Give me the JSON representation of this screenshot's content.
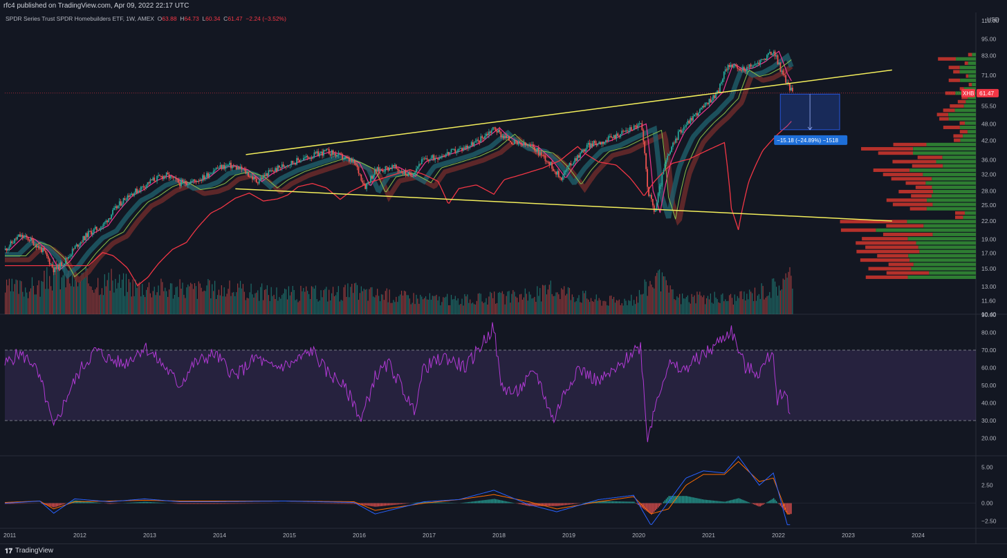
{
  "header": {
    "publisher": "rfc4 published on TradingView.com, Apr 09, 2022 22:17 UTC",
    "legend_name": "SPDR Series Trust SPDR Homebuilders ETF, 1W, AMEX",
    "ohlc": {
      "O": "63.88",
      "H": "64.73",
      "L": "60.34",
      "C": "61.47",
      "change": "−2.24 (−3.52%)"
    }
  },
  "footer": {
    "brand": "TradingView"
  },
  "colors": {
    "background": "#131722",
    "up": "#26a69a",
    "down": "#ef5350",
    "rsi": "#b23ad6",
    "trendline": "#f5f05c",
    "ma_red": "#f23645",
    "macd": "#2962ff",
    "signal": "#ff6d00",
    "profile_up": "#2e7d32",
    "profile_down": "#b5312b"
  },
  "chart_data": [
    {
      "type": "line",
      "title": "SPDR Series Trust SPDR Homebuilders ETF, 1W, AMEX",
      "ticker": "XHB",
      "last_price_label": "61.47",
      "currency": "USD",
      "y_scale": "log",
      "ylim": [
        10.4,
        110
      ],
      "y_ticks": [
        "110.00",
        "95.00",
        "83.00",
        "71.00",
        "62.00",
        "55.50",
        "48.00",
        "42.00",
        "36.00",
        "32.00",
        "28.00",
        "25.00",
        "22.00",
        "19.00",
        "17.00",
        "15.00",
        "13.00",
        "11.60",
        "10.40"
      ],
      "x_ticks": [
        "2011",
        "2012",
        "2013",
        "2014",
        "2015",
        "2016",
        "2017",
        "2018",
        "2019",
        "2020",
        "2021",
        "2022",
        "2023",
        "2024"
      ],
      "xlim": [
        2011.0,
        2024.9
      ],
      "price_series": {
        "name": "XHB",
        "x": [
          2011.0,
          2011.2,
          2011.35,
          2011.55,
          2011.7,
          2011.85,
          2012.0,
          2012.2,
          2012.4,
          2012.55,
          2012.75,
          2012.9,
          2013.1,
          2013.3,
          2013.5,
          2013.7,
          2013.85,
          2014.0,
          2014.2,
          2014.4,
          2014.6,
          2014.75,
          2015.0,
          2015.3,
          2015.6,
          2015.8,
          2016.0,
          2016.15,
          2016.3,
          2016.55,
          2016.8,
          2016.95,
          2017.2,
          2017.5,
          2017.75,
          2018.0,
          2018.1,
          2018.3,
          2018.55,
          2018.75,
          2018.95,
          2019.1,
          2019.35,
          2019.6,
          2019.85,
          2020.1,
          2020.2,
          2020.3,
          2020.45,
          2020.65,
          2020.85,
          2021.0,
          2021.2,
          2021.35,
          2021.5,
          2021.65,
          2021.8,
          2022.0,
          2022.12,
          2022.27
        ],
        "y": [
          17.5,
          19.5,
          19.0,
          17.2,
          14.8,
          15.9,
          17.8,
          20.0,
          21.2,
          23.8,
          27.0,
          28.2,
          30.5,
          31.8,
          29.8,
          30.3,
          31.3,
          33.5,
          34.4,
          33.2,
          30.2,
          32.2,
          34.5,
          36.5,
          38.5,
          37.0,
          35.0,
          29.0,
          33.0,
          34.0,
          31.5,
          35.5,
          37.0,
          39.0,
          41.5,
          46.5,
          44.0,
          41.0,
          40.0,
          36.0,
          31.0,
          35.0,
          40.5,
          42.0,
          45.0,
          48.0,
          28.0,
          23.5,
          35.0,
          45.0,
          51.0,
          55.0,
          62.0,
          78.0,
          74.0,
          75.5,
          79.0,
          86.0,
          72.0,
          61.47
        ]
      },
      "volume_series": {
        "name": "Volume",
        "x": [
          2011.0,
          2011.5,
          2011.7,
          2012.0,
          2012.5,
          2013.0,
          2013.5,
          2014.0,
          2014.5,
          2015.0,
          2015.5,
          2016.0,
          2016.5,
          2017.0,
          2017.5,
          2018.0,
          2018.5,
          2018.9,
          2019.5,
          2020.0,
          2020.3,
          2020.6,
          2021.0,
          2021.5,
          2022.0,
          2022.2
        ],
        "values_relative": [
          0.55,
          0.6,
          0.9,
          0.75,
          0.7,
          0.6,
          0.55,
          0.55,
          0.5,
          0.45,
          0.45,
          0.5,
          0.4,
          0.35,
          0.3,
          0.35,
          0.4,
          0.55,
          0.3,
          0.3,
          0.8,
          0.35,
          0.35,
          0.35,
          0.6,
          0.75
        ]
      },
      "trendlines": [
        {
          "x": [
            2014.45,
            2023.7
          ],
          "y": [
            37.5,
            74.0
          ]
        },
        {
          "x": [
            2014.3,
            2023.7
          ],
          "y": [
            28.5,
            22.0
          ]
        }
      ],
      "measurement": {
        "label": "−15.18 (−24.89%) −1518",
        "x": [
          2022.1,
          2022.95
        ],
        "y": [
          61.0,
          45.8
        ]
      }
    },
    {
      "type": "line",
      "title": "",
      "ylim": [
        10,
        90
      ],
      "y_ticks": [
        "90.00",
        "80.00",
        "70.00",
        "60.00",
        "50.00",
        "40.00",
        "30.00",
        "20.00"
      ],
      "bands": [
        30,
        70
      ],
      "series": [
        {
          "x": [
            2011.0,
            2011.2,
            2011.4,
            2011.55,
            2011.7,
            2011.9,
            2012.1,
            2012.3,
            2012.5,
            2012.7,
            2013.0,
            2013.3,
            2013.5,
            2013.7,
            2014.0,
            2014.3,
            2014.6,
            2014.8,
            2015.1,
            2015.4,
            2015.6,
            2015.8,
            2016.0,
            2016.1,
            2016.3,
            2016.5,
            2016.7,
            2016.85,
            2017.0,
            2017.3,
            2017.6,
            2017.8,
            2018.0,
            2018.1,
            2018.3,
            2018.6,
            2018.85,
            2019.0,
            2019.2,
            2019.5,
            2019.8,
            2020.0,
            2020.1,
            2020.2,
            2020.35,
            2020.5,
            2020.7,
            2020.9,
            2021.1,
            2021.3,
            2021.4,
            2021.6,
            2021.8,
            2022.0,
            2022.05,
            2022.15,
            2022.25
          ],
          "y": [
            62,
            68,
            63,
            48,
            25,
            45,
            60,
            70,
            65,
            62,
            72,
            60,
            50,
            62,
            68,
            55,
            66,
            60,
            62,
            70,
            58,
            52,
            40,
            30,
            55,
            62,
            48,
            35,
            60,
            66,
            60,
            72,
            83,
            50,
            45,
            58,
            30,
            45,
            60,
            52,
            60,
            70,
            72,
            20,
            45,
            62,
            58,
            65,
            70,
            78,
            81,
            60,
            57,
            70,
            42,
            48,
            34
          ]
        }
      ]
    },
    {
      "type": "line",
      "title": "",
      "ylim": [
        -3.5,
        6.5
      ],
      "y_ticks": [
        "5.00",
        "2.50",
        "0.00",
        "−2.50"
      ],
      "series": [
        {
          "x": [
            2011.0,
            2011.5,
            2011.7,
            2012.0,
            2012.5,
            2013.0,
            2013.5,
            2014.0,
            2015.0,
            2016.0,
            2016.3,
            2017.0,
            2017.5,
            2018.0,
            2018.5,
            2018.9,
            2019.5,
            2020.0,
            2020.25,
            2020.5,
            2020.75,
            2021.0,
            2021.3,
            2021.5,
            2021.8,
            2022.0,
            2022.2
          ],
          "y": [
            0.0,
            0.3,
            -1.4,
            0.6,
            0.2,
            0.6,
            0.2,
            0.2,
            0.3,
            0.1,
            -1.5,
            0.2,
            0.5,
            1.8,
            -0.2,
            -1.2,
            0.5,
            1.1,
            -3.1,
            0.2,
            3.5,
            4.5,
            4.2,
            6.5,
            2.5,
            4.2,
            -3.0
          ]
        },
        {
          "x": [
            2011.0,
            2011.5,
            2011.7,
            2012.0,
            2012.5,
            2013.0,
            2013.5,
            2014.0,
            2015.0,
            2016.0,
            2016.3,
            2017.0,
            2017.5,
            2018.0,
            2018.5,
            2018.9,
            2019.5,
            2020.0,
            2020.25,
            2020.5,
            2020.75,
            2021.0,
            2021.3,
            2021.5,
            2021.8,
            2022.0,
            2022.2
          ],
          "y": [
            0.1,
            0.3,
            -0.8,
            0.2,
            0.3,
            0.4,
            0.3,
            0.3,
            0.3,
            0.2,
            -1.0,
            0.0,
            0.5,
            1.2,
            0.2,
            -0.8,
            0.2,
            0.9,
            -1.5,
            -0.8,
            2.5,
            4.0,
            4.0,
            5.8,
            3.0,
            3.5,
            -1.5
          ]
        }
      ]
    }
  ]
}
